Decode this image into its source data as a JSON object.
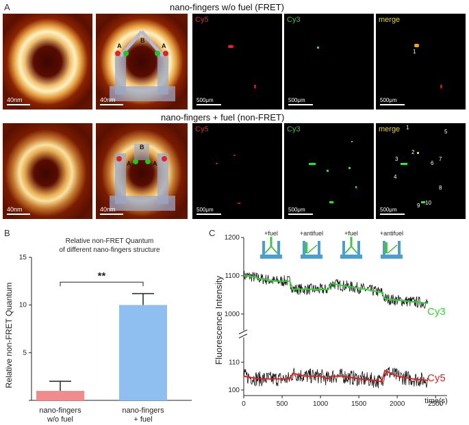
{
  "panelA": {
    "letter": "A",
    "row1_title": "nano-fingers w/o fuel (FRET)",
    "row2_title": "nano-fingers + fuel (non-FRET)",
    "afm_scalebar": "40nm",
    "fl_scalebar": "500μm",
    "channels": [
      "Cy5",
      "Cy3",
      "merge"
    ],
    "channel_colors": {
      "Cy5": "#e8202a",
      "Cy3": "#3ec43e",
      "merge": "#e6d23a"
    },
    "schematic_labels": {
      "a": "A",
      "b": "B"
    },
    "merge_row1_labels": [
      "1"
    ],
    "merge_row2_labels": [
      "1",
      "2",
      "3",
      "4",
      "5",
      "6",
      "7",
      "8",
      "9",
      "10"
    ]
  },
  "panelB": {
    "letter": "B",
    "title_line1": "Relative non-FRET Quantum",
    "title_line2": "of different nano-fingers structure",
    "significance": "**",
    "categories_line1": [
      "nano-fingers",
      "nano-fingers"
    ],
    "categories_line2": [
      "w/o fuel",
      "+ fuel"
    ]
  },
  "panelC": {
    "letter": "C",
    "ylabel": "Fluorescence Intensity",
    "xlabel": "time(s)",
    "series_labels": [
      "Cy3",
      "Cy5"
    ],
    "events": [
      "+fuel",
      "+antifuel",
      "+fuel",
      "+antifuel"
    ]
  },
  "chart_data": [
    {
      "type": "bar",
      "title": "Relative non-FRET Quantum of different nano-fingers structure",
      "ylabel": "Relative non-FRET Quantum",
      "categories": [
        "nano-fingers w/o fuel",
        "nano-fingers + fuel"
      ],
      "values": [
        1.0,
        10.0
      ],
      "errors": [
        1.0,
        1.2
      ],
      "colors": [
        "#f28b8b",
        "#8fbff0"
      ],
      "ylim": [
        0,
        15
      ],
      "yticks": [
        0,
        5,
        10,
        15
      ],
      "ytick_labels": [
        "",
        "5",
        "10",
        "15"
      ],
      "annotation": "**"
    },
    {
      "type": "line",
      "ylabel": "Fluorescence Intensity",
      "xlabel": "time(s)",
      "xlim": [
        0,
        2650
      ],
      "xticks": [
        0,
        500,
        1000,
        1500,
        2000,
        2500
      ],
      "upper_axis": {
        "ylim": [
          980,
          1200
        ],
        "yticks": [
          1000,
          1100,
          1200
        ]
      },
      "lower_axis": {
        "ylim": [
          98,
          114
        ],
        "yticks": [
          100,
          110
        ]
      },
      "series": [
        {
          "name": "Cy3",
          "color": "#2ed42e",
          "axis": "upper",
          "x": [
            0,
            100,
            200,
            300,
            400,
            600,
            640,
            800,
            1000,
            1100,
            1140,
            1300,
            1500,
            1700,
            1800,
            1840,
            2000,
            2200,
            2400
          ],
          "y": [
            1100,
            1098,
            1093,
            1090,
            1086,
            1086,
            1065,
            1065,
            1064,
            1064,
            1080,
            1074,
            1068,
            1060,
            1056,
            1040,
            1036,
            1032,
            1028
          ]
        },
        {
          "name": "Cy5",
          "color": "#e81c1c",
          "axis": "lower",
          "x": [
            0,
            200,
            400,
            600,
            640,
            800,
            1000,
            1100,
            1140,
            1300,
            1500,
            1700,
            1800,
            1840,
            2000,
            2200,
            2400
          ],
          "y": [
            105,
            104,
            104,
            104,
            106,
            105,
            105,
            104,
            105,
            105,
            104,
            103.5,
            103,
            107,
            105,
            104,
            103.5
          ]
        }
      ],
      "events_x": [
        620,
        1110,
        1800,
        2180
      ]
    }
  ]
}
